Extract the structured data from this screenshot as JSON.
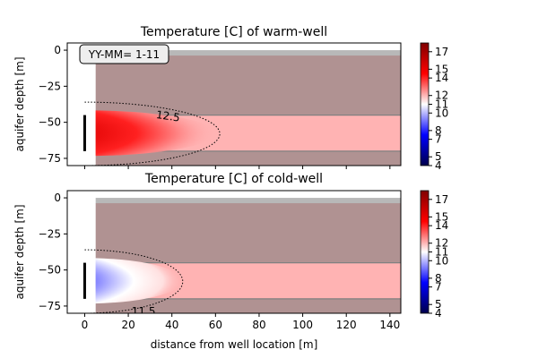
{
  "chart_data": [
    {
      "type": "heatmap",
      "title": "Temperature [C] of warm-well",
      "ylabel": "aquifer depth [m]",
      "xlabel": "",
      "xlim": [
        -8,
        145
      ],
      "ylim": [
        -80,
        5
      ],
      "xticks": [
        "0",
        "20",
        "40",
        "60",
        "80",
        "100",
        "120",
        "140"
      ],
      "yticks": [
        "0",
        "−25",
        "−50",
        "−75"
      ],
      "annotation": "YY-MM= 1-11",
      "aquifer": {
        "top": -45,
        "bottom": -70,
        "temperature": 12
      },
      "confining_layers": [
        {
          "top": 0,
          "bottom": -45
        },
        {
          "top": -70,
          "bottom": -80
        }
      ],
      "surface_band": {
        "top": 0,
        "bottom": -4
      },
      "well_screen": {
        "x": 0,
        "top": -45,
        "bottom": -70
      },
      "plume": {
        "center_depth": -57.5,
        "radius_m": 60,
        "core_temp": 18,
        "ambient_temp": 12
      },
      "contours": [
        {
          "level": 12.5,
          "label": "12.5",
          "radius_m": 62,
          "top": -36,
          "bottom": -80
        }
      ],
      "colorbar": {
        "cmap": "seismic",
        "min": 4,
        "max": 18,
        "ticks": [
          "4",
          "5",
          "7",
          "8",
          "10",
          "11",
          "12",
          "14",
          "15",
          "17"
        ],
        "tick_values": [
          4,
          5,
          7,
          8,
          10,
          11,
          12,
          14,
          15,
          17
        ]
      }
    },
    {
      "type": "heatmap",
      "title": "Temperature [C] of cold-well",
      "ylabel": "aquifer depth [m]",
      "xlabel": "distance from well location [m]",
      "xlim": [
        -8,
        145
      ],
      "ylim": [
        -80,
        5
      ],
      "xticks": [
        "0",
        "20",
        "40",
        "60",
        "80",
        "100",
        "120",
        "140"
      ],
      "yticks": [
        "0",
        "−25",
        "−50",
        "−75"
      ],
      "aquifer": {
        "top": -45,
        "bottom": -70,
        "temperature": 12
      },
      "confining_layers": [
        {
          "top": 0,
          "bottom": -45
        },
        {
          "top": -70,
          "bottom": -80
        }
      ],
      "surface_band": {
        "top": 0,
        "bottom": -4
      },
      "well_screen": {
        "x": 0,
        "top": -45,
        "bottom": -70
      },
      "plume": {
        "center_depth": -57.5,
        "radius_m": 45,
        "core_temp": 5,
        "ambient_temp": 12
      },
      "contours": [
        {
          "level": 11.5,
          "label": "11.5",
          "radius_m": 45,
          "top": -36,
          "bottom": -80
        }
      ],
      "colorbar": {
        "cmap": "seismic",
        "min": 4,
        "max": 18,
        "ticks": [
          "4",
          "5",
          "7",
          "8",
          "10",
          "11",
          "12",
          "14",
          "15",
          "17"
        ],
        "tick_values": [
          4,
          5,
          7,
          8,
          10,
          11,
          12,
          14,
          15,
          17
        ]
      }
    }
  ]
}
